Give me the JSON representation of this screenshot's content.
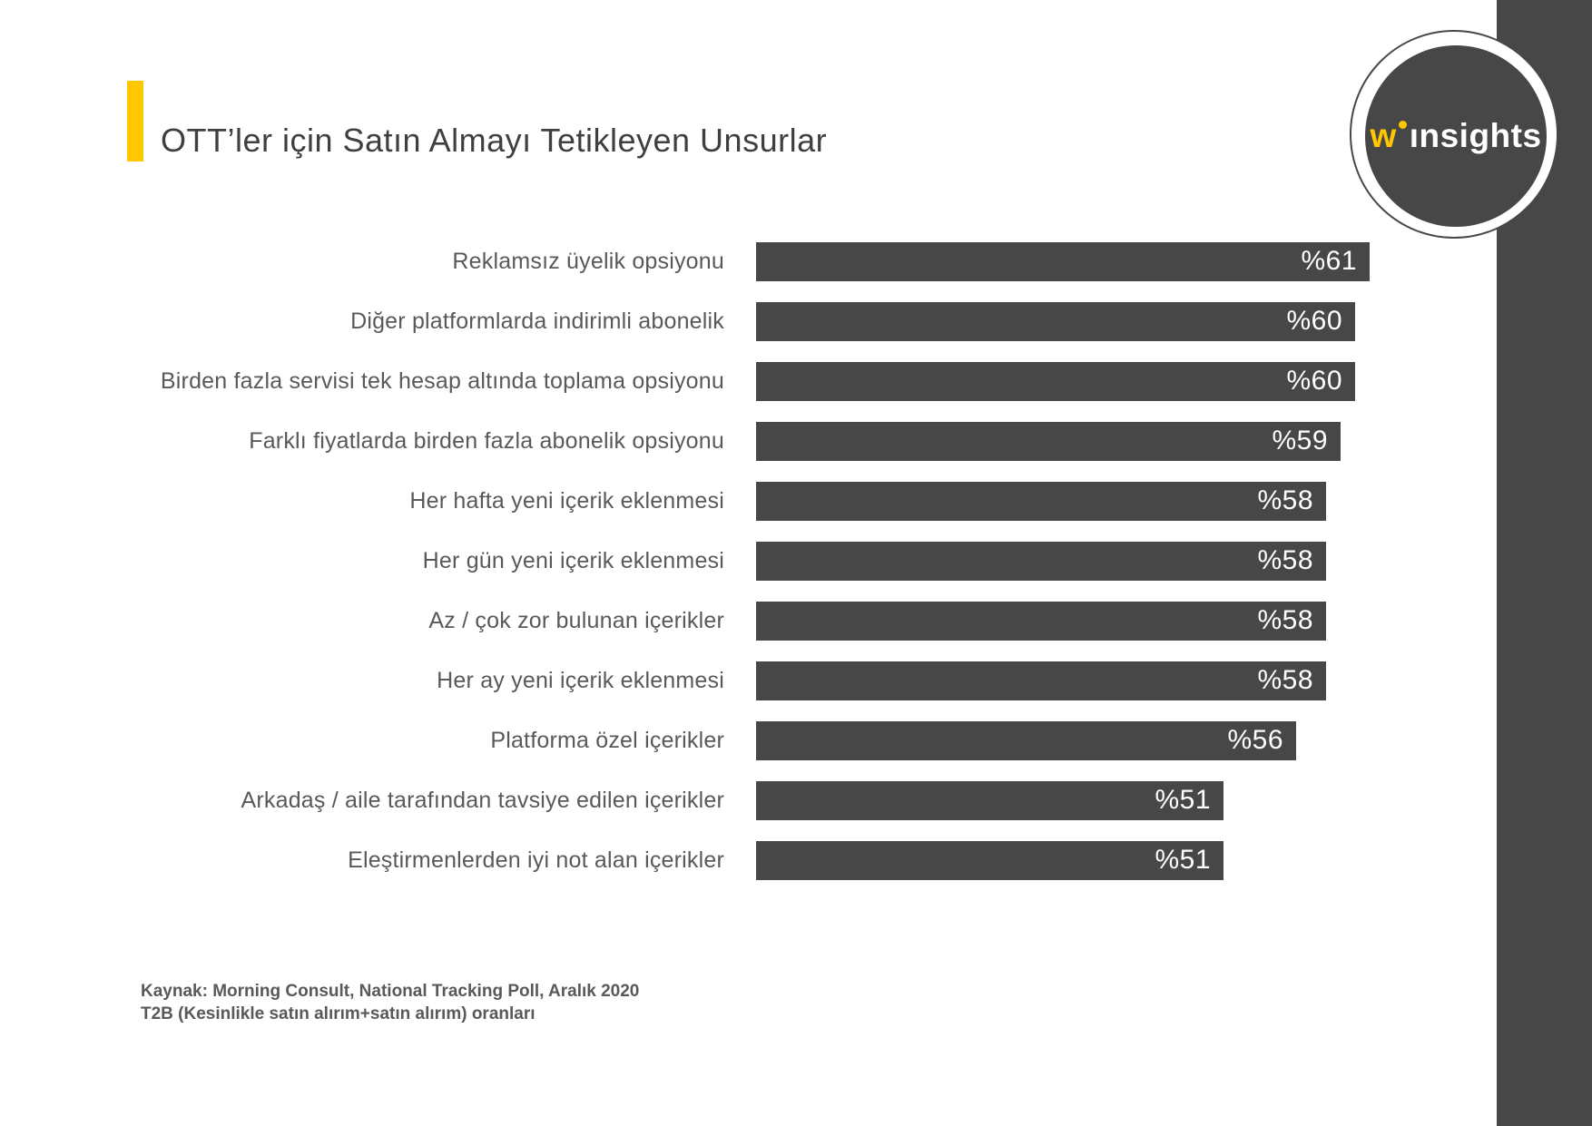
{
  "slide": {
    "title": "OTT’ler için Satın Almayı Tetikleyen Unsurlar",
    "source": {
      "line1": "Kaynak: Morning Consult, National Tracking Poll, Aralık 2020",
      "line2": "T2B (Kesinlikle satın alırım+satın alırım) oranları"
    },
    "logo": {
      "w": "w",
      "rest": "ınsights"
    }
  },
  "colors": {
    "bar_fill": "#474747",
    "accent_yellow": "#FFC800",
    "title_text": "#3F3F3F",
    "label_text": "#595959",
    "value_text": "#FFFFFF"
  },
  "chart_data": {
    "type": "bar",
    "orientation": "horizontal",
    "title": "OTT’ler için Satın Almayı Tetikleyen Unsurlar",
    "categories": [
      "Reklamsız üyelik opsiyonu",
      "Diğer platformlarda indirimli abonelik",
      "Birden fazla servisi tek hesap altında toplama opsiyonu",
      "Farklı fiyatlarda birden fazla abonelik opsiyonu",
      "Her hafta yeni içerik eklenmesi",
      "Her gün yeni içerik eklenmesi",
      "Az / çok zor bulunan içerikler",
      "Her ay yeni içerik eklenmesi",
      "Platforma özel içerikler",
      "Arkadaş / aile tarafından tavsiye edilen içerikler",
      "Eleştirmenlerden iyi not alan içerikler"
    ],
    "values": [
      61,
      60,
      60,
      59,
      58,
      58,
      58,
      58,
      56,
      51,
      51
    ],
    "value_prefix": "%",
    "data_labels": [
      "%61",
      "%60",
      "%60",
      "%59",
      "%58",
      "%58",
      "%58",
      "%58",
      "%56",
      "%51",
      "%51"
    ],
    "xlim": [
      19,
      62
    ],
    "grid": false,
    "legend": false,
    "bar_color": "#474747",
    "value_label_position": "inside-end"
  }
}
